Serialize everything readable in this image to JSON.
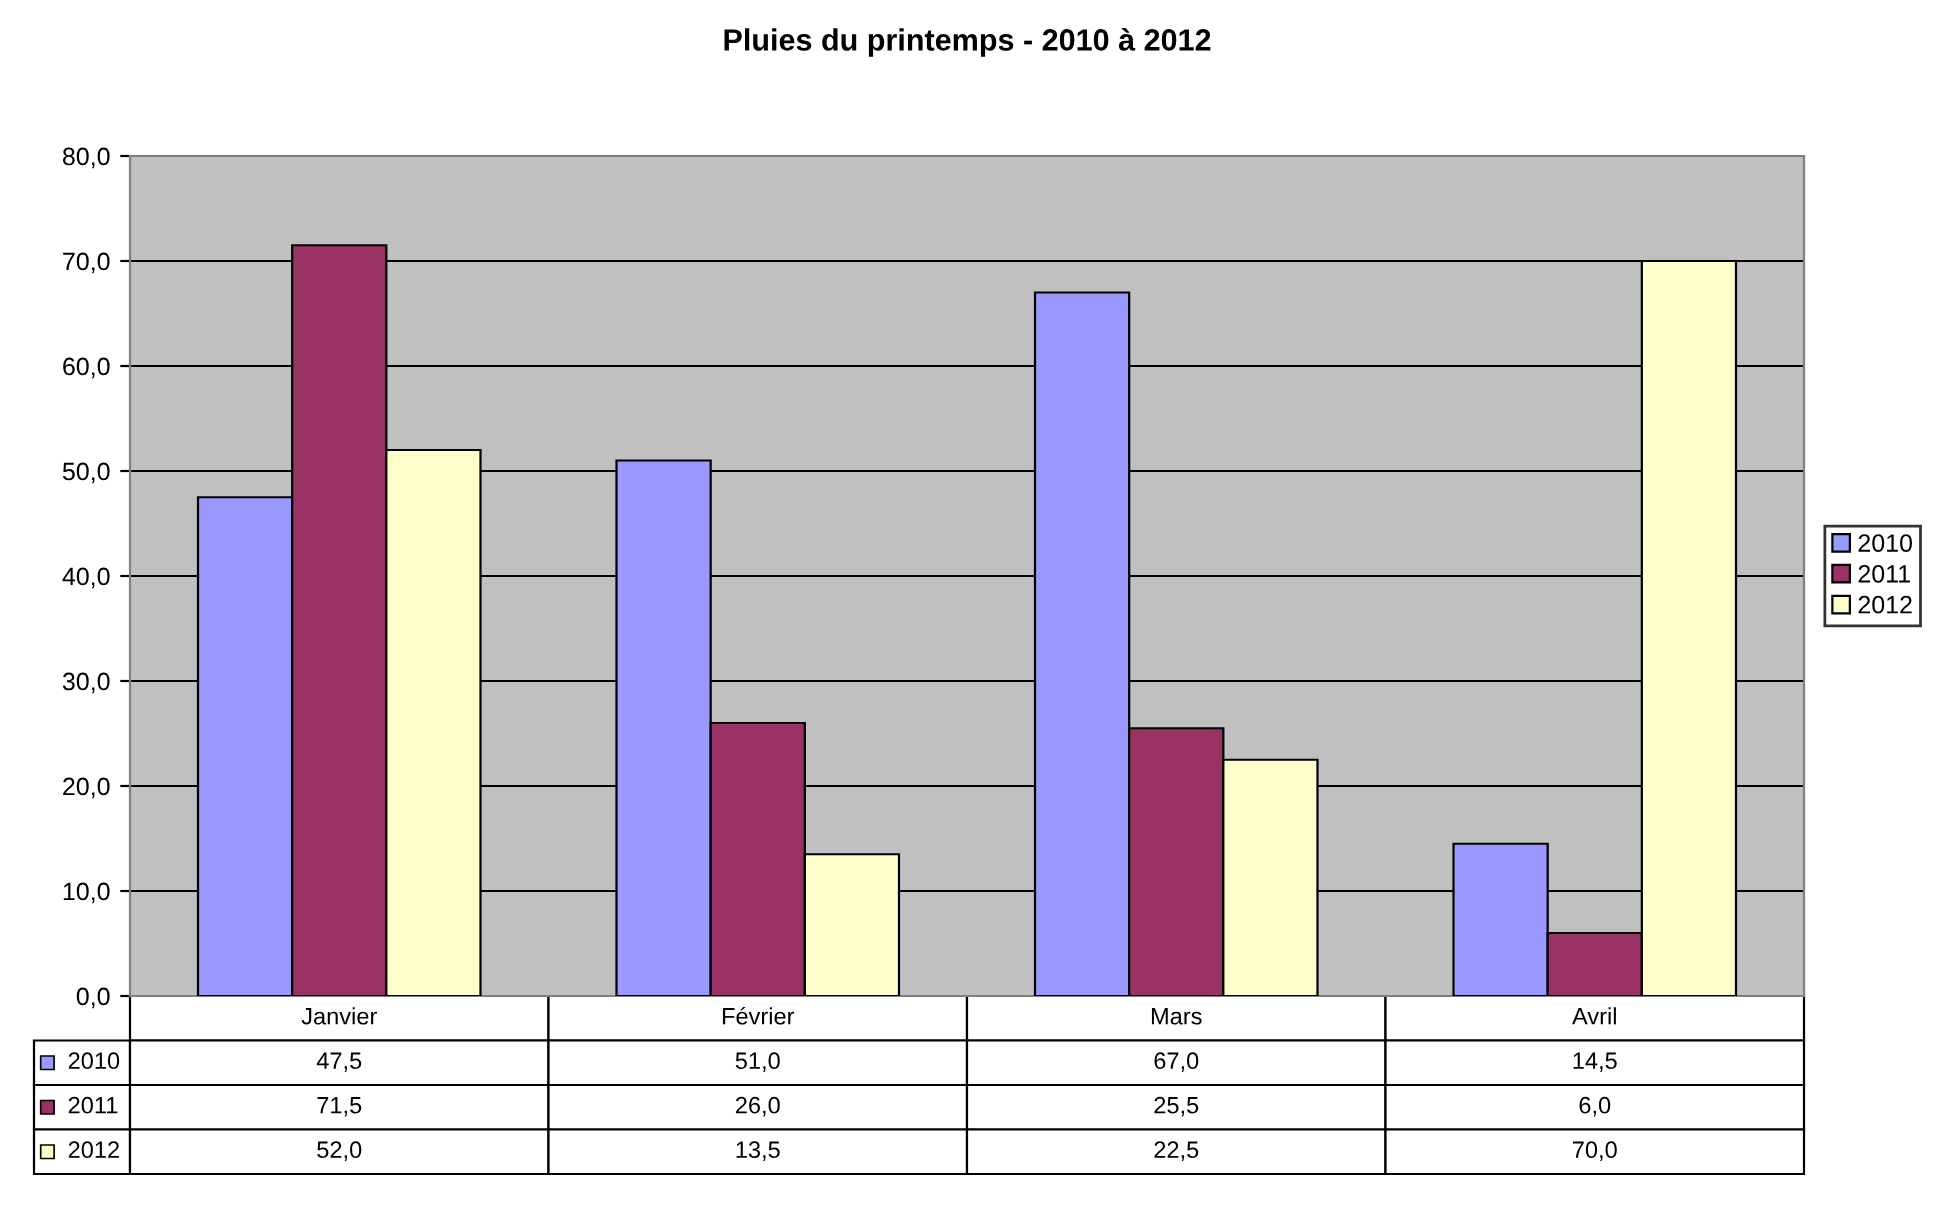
{
  "chart_data": {
    "type": "bar",
    "title": "Pluies du printemps - 2010 à 2012",
    "categories": [
      "Janvier",
      "Février",
      "Mars",
      "Avril"
    ],
    "series": [
      {
        "name": "2010",
        "color": "#9999ff",
        "values": [
          47.5,
          51.0,
          67.0,
          14.5
        ],
        "value_labels": [
          "47,5",
          "51,0",
          "67,0",
          "14,5"
        ]
      },
      {
        "name": "2011",
        "color": "#993366",
        "values": [
          71.5,
          26.0,
          25.5,
          6.0
        ],
        "value_labels": [
          "71,5",
          "26,0",
          "25,5",
          "6,0"
        ]
      },
      {
        "name": "2012",
        "color": "#ffffcc",
        "values": [
          52.0,
          13.5,
          22.5,
          70.0
        ],
        "value_labels": [
          "52,0",
          "13,5",
          "22,5",
          "70,0"
        ]
      }
    ],
    "ylim": [
      0,
      80
    ],
    "yticks": [
      {
        "value": 0,
        "label": "0,0"
      },
      {
        "value": 10,
        "label": "10,0"
      },
      {
        "value": 20,
        "label": "20,0"
      },
      {
        "value": 30,
        "label": "30,0"
      },
      {
        "value": 40,
        "label": "40,0"
      },
      {
        "value": 50,
        "label": "50,0"
      },
      {
        "value": 60,
        "label": "60,0"
      },
      {
        "value": 70,
        "label": "70,0"
      },
      {
        "value": 80,
        "label": "80,0"
      }
    ],
    "grid": "y",
    "legend": "right"
  }
}
